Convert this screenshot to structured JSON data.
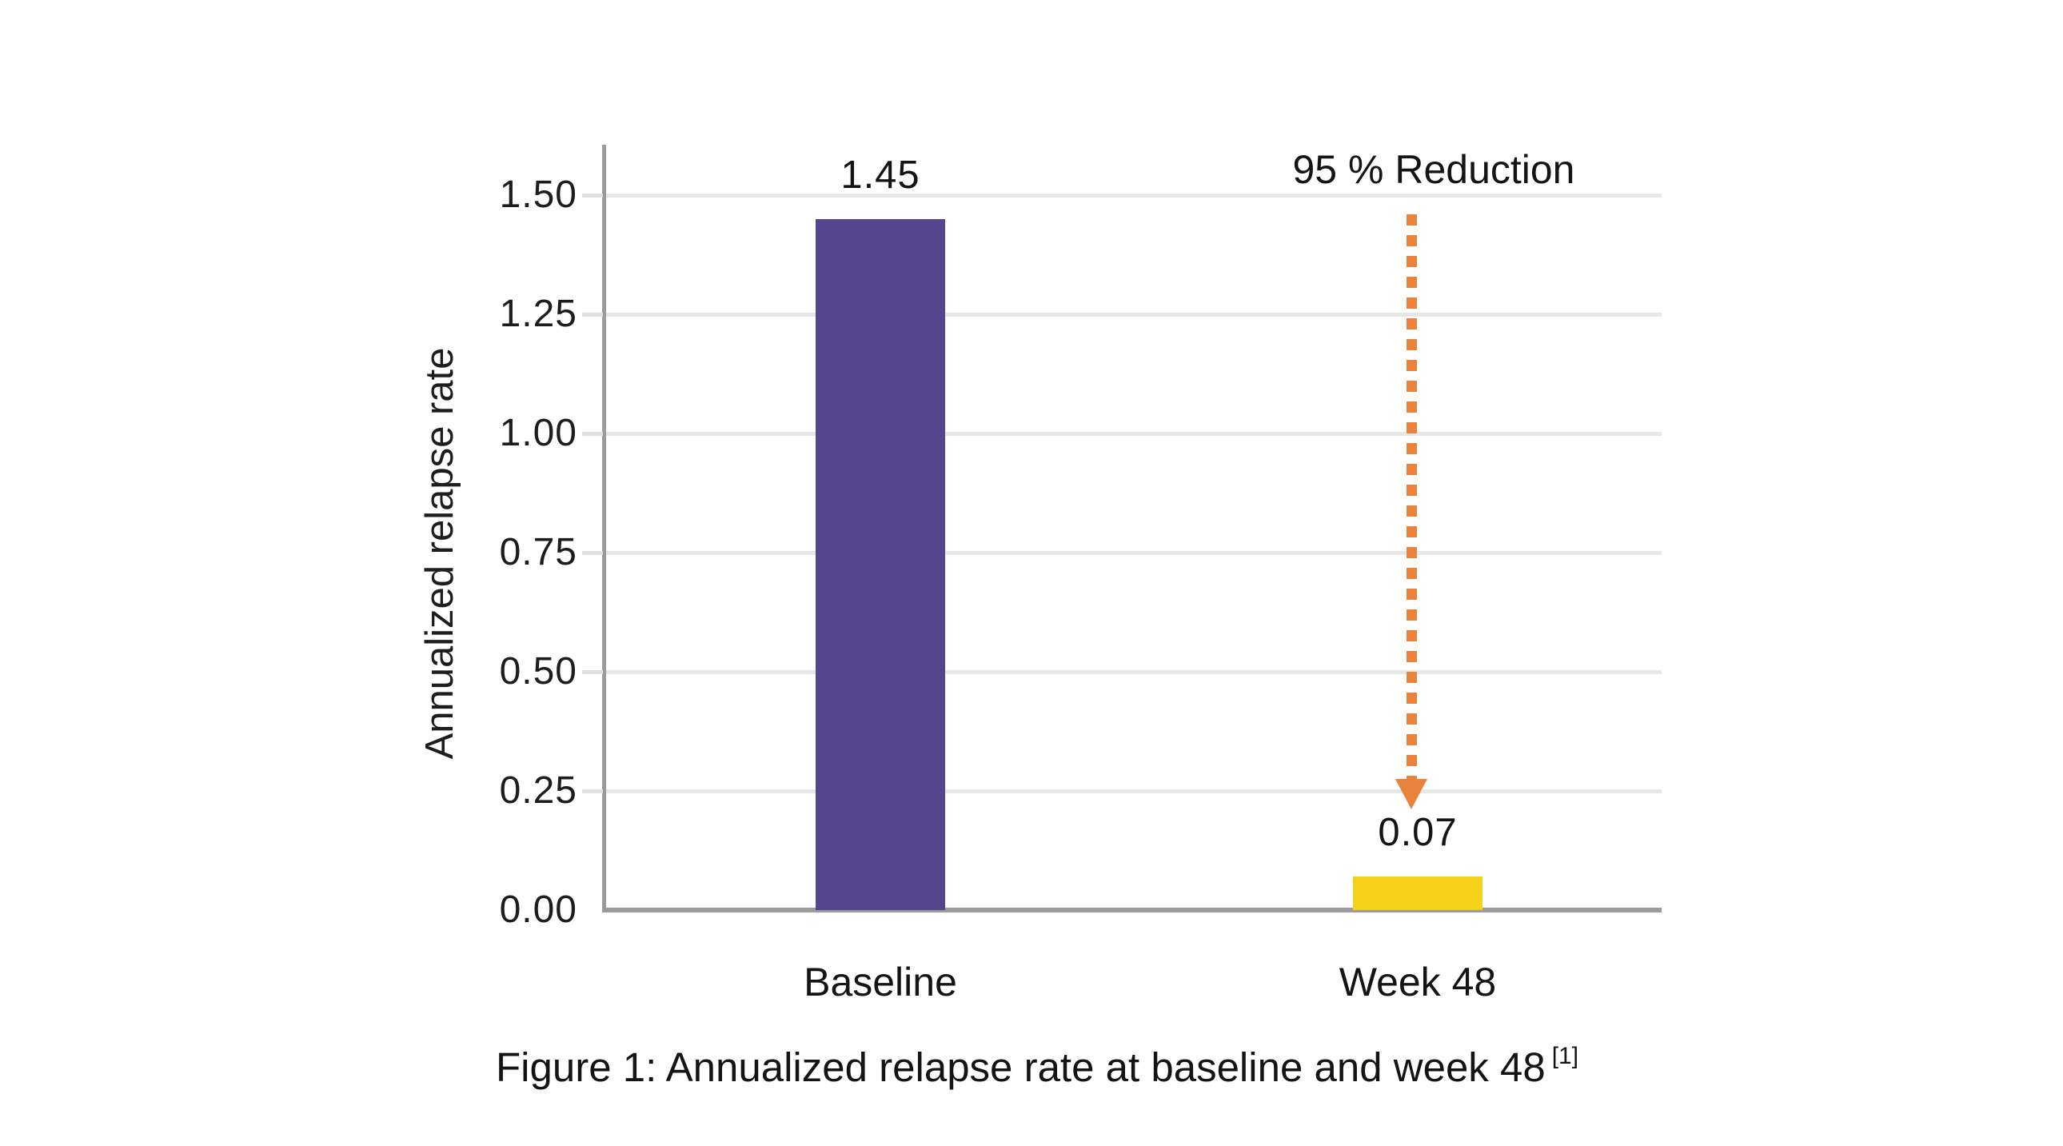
{
  "figure": {
    "caption": "Figure 1: Annualized relapse rate at baseline and week 48",
    "caption_superscript": "[1]"
  },
  "chart_data": {
    "type": "bar",
    "title": "",
    "xlabel": "",
    "ylabel": "Annualized relapse rate",
    "categories": [
      "Baseline",
      "Week 48"
    ],
    "values": [
      1.45,
      0.07
    ],
    "value_labels": [
      "1.45",
      "0.07"
    ],
    "bar_colors": [
      "#55458f",
      "#f6d11b"
    ],
    "ylim": [
      0,
      1.5
    ],
    "yticks": [
      0,
      0.25,
      0.5,
      0.75,
      1,
      1.25,
      1.5
    ],
    "ytick_labels": [
      "0.00",
      "0.25",
      "0.50",
      "0.75",
      "1.00",
      "1.25",
      "1.50"
    ],
    "grid": "horizontal",
    "legend": "none",
    "annotation": {
      "text": "95 % Reduction",
      "arrow_style": "dotted-down",
      "arrow_color": "#e8823c",
      "target_category": "Week 48"
    }
  },
  "colors": {
    "baseline_bar": "#55458f",
    "week48_bar": "#f6d11b",
    "arrow_orange": "#e8823c",
    "axis_gray": "#9b9b9b",
    "gridline_gray": "#e7e7e7",
    "text_dark": "#141414"
  }
}
